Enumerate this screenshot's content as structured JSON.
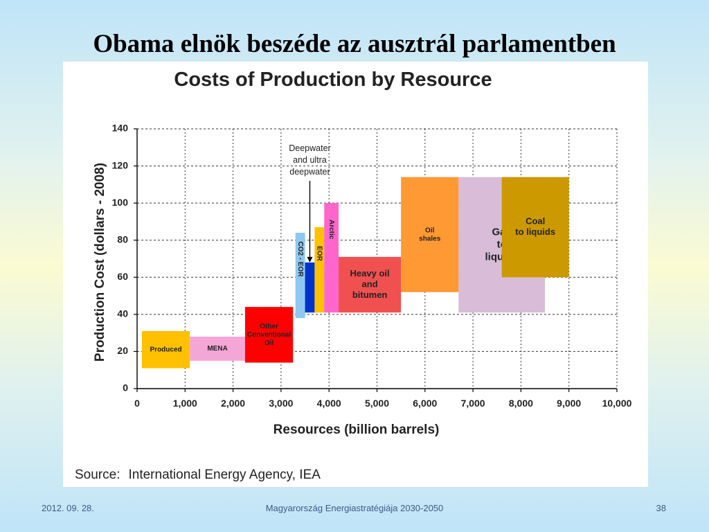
{
  "slide": {
    "title": "Obama elnök beszéde az ausztrál parlamentben",
    "footer_date": "2012. 09. 28.",
    "footer_center": "Magyarország Energiastratégiája 2030-2050",
    "page_number": "38"
  },
  "chart_data": {
    "type": "bar",
    "title": "Costs of Production by Resource",
    "xlabel": "Resources (billion barrels)",
    "ylabel": "Production Cost (dollars - 2008)",
    "xlim": [
      0,
      10000
    ],
    "ylim": [
      0,
      140
    ],
    "xticks": [
      0,
      1000,
      2000,
      3000,
      4000,
      5000,
      6000,
      7000,
      8000,
      9000,
      10000
    ],
    "xtick_labels": [
      "0",
      "1,000",
      "2,000",
      "3,000",
      "4,000",
      "5,000",
      "6,000",
      "7,000",
      "8,000",
      "9,000",
      "10,000"
    ],
    "yticks": [
      0,
      20,
      40,
      60,
      80,
      100,
      120,
      140
    ],
    "ytick_labels": [
      "0",
      "20",
      "40",
      "60",
      "80",
      "100",
      "120",
      "140"
    ],
    "grid": true,
    "blocks": [
      {
        "name": "Produced",
        "label_lines": [
          "Produced"
        ],
        "x0": 100,
        "x1": 1100,
        "y0": 11,
        "y1": 31,
        "color": "#ffc000",
        "text_color": "#222222"
      },
      {
        "name": "MENA",
        "label_lines": [
          "MENA"
        ],
        "x0": 1100,
        "x1": 2250,
        "y0": 15,
        "y1": 28,
        "color": "#f4a6d7",
        "text_color": "#222222"
      },
      {
        "name": "Other Conventional Oil",
        "label_lines": [
          "Other",
          "Conventional",
          "Oil"
        ],
        "x0": 2250,
        "x1": 3250,
        "y0": 14,
        "y1": 44,
        "color": "#ff0000",
        "text_color": "#222222"
      },
      {
        "name": "CO2 - EOR",
        "label_lines": [
          "CO2 - EOR"
        ],
        "x0": 3300,
        "x1": 3500,
        "y0": 38,
        "y1": 84,
        "color": "#8ec8f0",
        "text_color": "#222222",
        "vertical": true
      },
      {
        "name": "Deepwater and ultra deepwater",
        "label_lines": [],
        "x0": 3500,
        "x1": 3700,
        "y0": 41,
        "y1": 68,
        "color": "#0033cc",
        "text_color": "#222222"
      },
      {
        "name": "EOR",
        "label_lines": [
          "EOR"
        ],
        "x0": 3700,
        "x1": 3900,
        "y0": 41,
        "y1": 87,
        "color": "#ffc000",
        "text_color": "#222222",
        "vertical": true
      },
      {
        "name": "Arctic",
        "label_lines": [
          "Arctic"
        ],
        "x0": 3900,
        "x1": 4200,
        "y0": 41,
        "y1": 100,
        "color": "#ff66cc",
        "text_color": "#222222",
        "vertical": true
      },
      {
        "name": "Heavy oil and bitumen",
        "label_lines": [
          "Heavy oil",
          "and",
          "bitumen"
        ],
        "x0": 4200,
        "x1": 5500,
        "y0": 41,
        "y1": 71,
        "color": "#f05050",
        "text_color": "#222222"
      },
      {
        "name": "Gas to liquids",
        "label_lines": [
          "Gas",
          "to",
          "liquids"
        ],
        "x0": 6700,
        "x1": 8500,
        "y0": 41,
        "y1": 114,
        "color": "#d8bcd8",
        "text_color": "#222222"
      },
      {
        "name": "Oil shales",
        "label_lines": [
          "Oil",
          "shales"
        ],
        "x0": 5500,
        "x1": 6700,
        "y0": 52,
        "y1": 114,
        "color": "#ff9933",
        "text_color": "#222222"
      },
      {
        "name": "Coal to liquids",
        "label_lines": [
          "Coal",
          "to liquids"
        ],
        "x0": 7600,
        "x1": 9000,
        "y0": 60,
        "y1": 114,
        "color": "#cc9900",
        "text_color": "#222222"
      }
    ],
    "annotations": [
      {
        "label_lines": [
          "Deepwater",
          "and ultra",
          "deepwater"
        ],
        "text_x": 3600,
        "text_y": 128,
        "arrow_to_x": 3600,
        "arrow_to_y": 68
      }
    ],
    "source_label": "Source:",
    "source_text": "International Energy Agency, IEA"
  }
}
